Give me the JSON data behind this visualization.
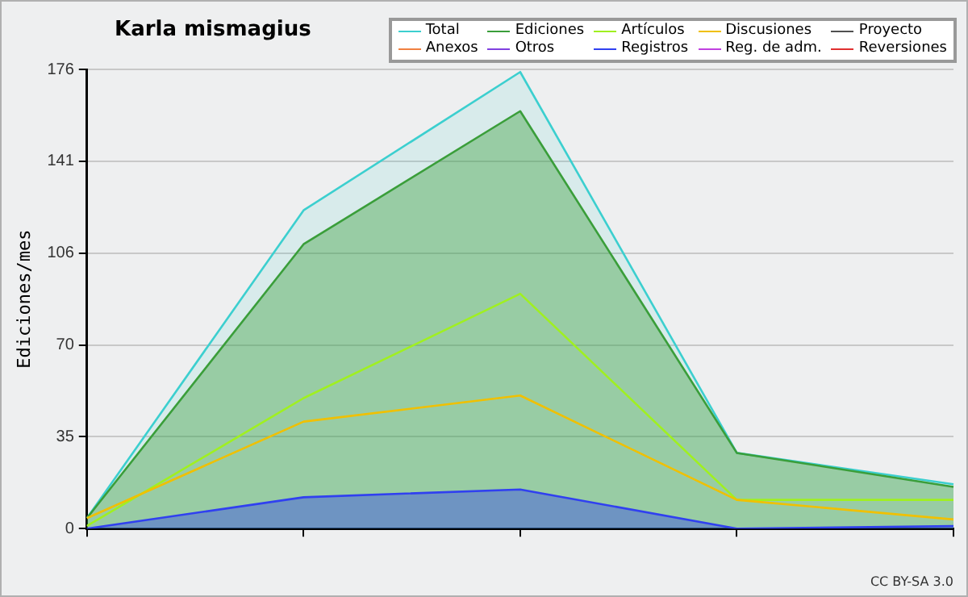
{
  "chart_data": {
    "type": "area",
    "title": "Karla mismagius",
    "ylabel": "Ediciones/mes",
    "categories": [
      null,
      null,
      null,
      null,
      null
    ],
    "series": [
      {
        "name": "Total",
        "color": "#3ccfcf",
        "values": [
          4,
          122,
          175,
          29,
          17
        ]
      },
      {
        "name": "Ediciones",
        "color": "#3a9e3a",
        "values": [
          4,
          109,
          160,
          29,
          16
        ]
      },
      {
        "name": "Artículos",
        "type": "line",
        "color": "#a0f020",
        "values": [
          1,
          50,
          90,
          11,
          11
        ]
      },
      {
        "name": "Discusiones",
        "type": "line",
        "color": "#f0c000",
        "values": [
          4,
          41,
          51,
          11,
          3.5
        ]
      },
      {
        "name": "Proyecto",
        "type": "line",
        "color": "#505050",
        "values": [
          null,
          null,
          null,
          null,
          null
        ]
      },
      {
        "name": "Anexos",
        "type": "line",
        "color": "#f08040",
        "values": [
          null,
          null,
          null,
          null,
          null
        ]
      },
      {
        "name": "Otros",
        "type": "line",
        "color": "#8040e0",
        "values": [
          null,
          null,
          null,
          null,
          null
        ]
      },
      {
        "name": "Registros",
        "color": "#3040f0",
        "values": [
          0,
          12,
          15,
          0,
          1
        ]
      },
      {
        "name": "Reg. de adm.",
        "type": "line",
        "color": "#c040e0",
        "values": [
          null,
          null,
          null,
          null,
          null
        ]
      },
      {
        "name": "Reversiones",
        "type": "line",
        "color": "#e03030",
        "values": [
          null,
          null,
          null,
          null,
          null
        ]
      }
    ],
    "ylim": [
      0,
      176
    ],
    "yticks": [
      0,
      {
        "value": 35.2,
        "label": "35"
      },
      {
        "value": 70.4,
        "label": "70"
      },
      {
        "value": 105.6,
        "label": "106"
      },
      {
        "value": 140.8,
        "label": "141"
      },
      {
        "value": 176,
        "label": "176"
      }
    ],
    "grid": "y",
    "legend": "top right",
    "marker": "none",
    "line_style": "solid",
    "annotations": [
      "CC BY-SA 3.0"
    ]
  }
}
